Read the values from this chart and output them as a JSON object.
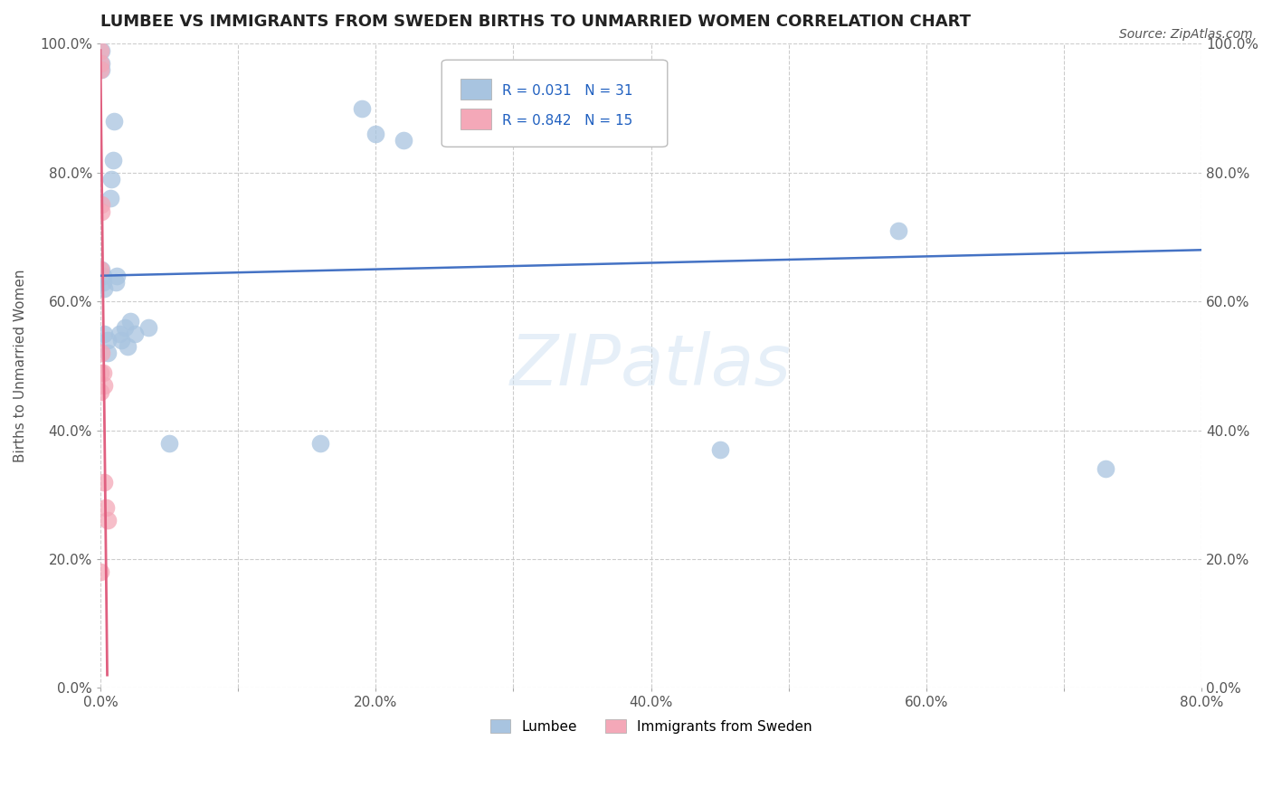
{
  "title": "LUMBEE VS IMMIGRANTS FROM SWEDEN BIRTHS TO UNMARRIED WOMEN CORRELATION CHART",
  "source": "Source: ZipAtlas.com",
  "ylabel": "Births to Unmarried Women",
  "xlim": [
    0.0,
    0.8
  ],
  "ylim": [
    0.0,
    1.0
  ],
  "xticks": [
    0.0,
    0.1,
    0.2,
    0.3,
    0.4,
    0.5,
    0.6,
    0.7,
    0.8
  ],
  "yticks": [
    0.0,
    0.2,
    0.4,
    0.6,
    0.8,
    1.0
  ],
  "xtick_labels": [
    "0.0%",
    "",
    "20.0%",
    "",
    "40.0%",
    "",
    "60.0%",
    "",
    "80.0%"
  ],
  "ytick_labels": [
    "0.0%",
    "20.0%",
    "40.0%",
    "60.0%",
    "80.0%",
    "100.0%"
  ],
  "lumbee_color": "#a8c4e0",
  "sweden_color": "#f4a8b8",
  "lumbee_line_color": "#4472c4",
  "sweden_line_color": "#e06080",
  "lumbee_R": 0.031,
  "lumbee_N": 31,
  "sweden_R": 0.842,
  "sweden_N": 15,
  "legend_R_color": "#2060c0",
  "watermark": "ZIPatlas",
  "lumbee_x": [
    0.001,
    0.001,
    0.001,
    0.001,
    0.002,
    0.002,
    0.003,
    0.003,
    0.005,
    0.005,
    0.007,
    0.008,
    0.009,
    0.01,
    0.011,
    0.012,
    0.014,
    0.015,
    0.018,
    0.02,
    0.022,
    0.025,
    0.035,
    0.05,
    0.16,
    0.19,
    0.2,
    0.22,
    0.45,
    0.58,
    0.73
  ],
  "lumbee_y": [
    0.99,
    0.97,
    0.96,
    0.65,
    0.64,
    0.63,
    0.62,
    0.55,
    0.54,
    0.52,
    0.76,
    0.79,
    0.82,
    0.88,
    0.63,
    0.64,
    0.55,
    0.54,
    0.56,
    0.53,
    0.57,
    0.55,
    0.56,
    0.38,
    0.38,
    0.9,
    0.86,
    0.85,
    0.37,
    0.71,
    0.34
  ],
  "sweden_x": [
    0.0,
    0.0,
    0.0,
    0.0,
    0.0,
    0.0,
    0.0,
    0.001,
    0.001,
    0.001,
    0.002,
    0.003,
    0.003,
    0.004,
    0.005
  ],
  "sweden_y": [
    0.99,
    0.97,
    0.96,
    0.65,
    0.49,
    0.46,
    0.18,
    0.75,
    0.74,
    0.52,
    0.49,
    0.47,
    0.32,
    0.28,
    0.26
  ]
}
